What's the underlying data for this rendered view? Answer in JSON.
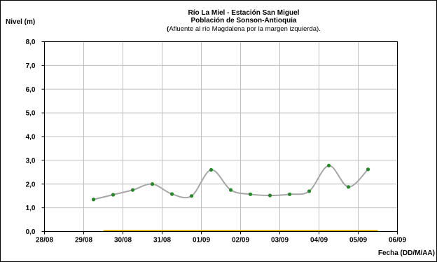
{
  "chart_data": {
    "type": "line",
    "title": "Río La Miel  - Estación San Miguel",
    "title_line2": "Población de Sonson-Antioquia",
    "subtitle_bold_char": "(",
    "subtitle": "Afluente al río Magdalena por la margen izquierda).",
    "ylabel": "Nivel (m)",
    "xlabel": "Fecha (DD/M/AA)",
    "ylim": [
      0,
      8
    ],
    "yticks": [
      "0,0",
      "1,0",
      "2,0",
      "3,0",
      "4,0",
      "5,0",
      "6,0",
      "7,0",
      "8,0"
    ],
    "xticks": [
      "28/08",
      "29/08",
      "30/08",
      "31/08",
      "01/09",
      "02/09",
      "03/09",
      "04/09",
      "05/09",
      "06/09"
    ],
    "x_start": "2008-08-28",
    "x_end": "2008-09-06",
    "grid": true,
    "series": [
      {
        "color": "#a6a6a6",
        "marker_color": "#1e8c1e",
        "x": [
          "2008-08-29T06:00",
          "2008-08-29T18:00",
          "2008-08-30T06:00",
          "2008-08-30T18:00",
          "2008-08-31T06:00",
          "2008-08-31T18:00",
          "2008-09-01T06:00",
          "2008-09-01T18:00",
          "2008-09-02T06:00",
          "2008-09-02T18:00",
          "2008-09-03T06:00",
          "2008-09-03T18:00",
          "2008-09-04T06:00",
          "2008-09-04T18:00",
          "2008-09-05T06:00"
        ],
        "y": [
          1.35,
          1.55,
          1.75,
          2.0,
          1.58,
          1.5,
          2.6,
          1.75,
          1.57,
          1.52,
          1.57,
          1.7,
          2.78,
          1.88,
          2.62
        ]
      }
    ],
    "reference_line": {
      "color": "#e0b000",
      "y": 0,
      "x_from": "2008-08-29T12:00",
      "x_to": "2008-09-05T12:00"
    }
  }
}
